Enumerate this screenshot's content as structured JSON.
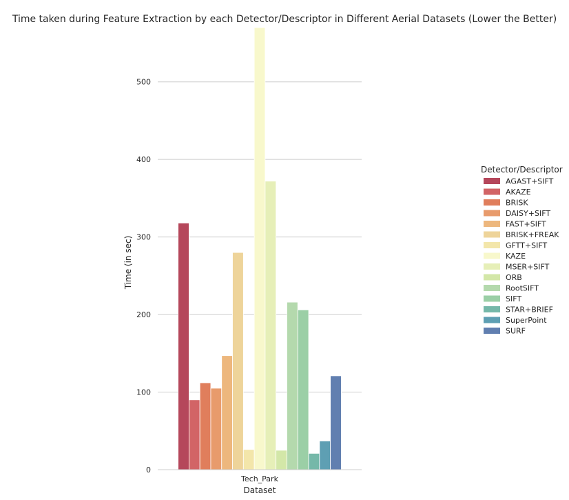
{
  "chart_data": {
    "type": "bar",
    "title": "Time taken during Feature Extraction by each Detector/Descriptor in Different Aerial Datasets (Lower the Better)",
    "xlabel": "Dataset",
    "ylabel": "Time (in sec)",
    "categories": [
      "Tech_Park"
    ],
    "ylim": [
      0,
      570
    ],
    "yticks": [
      0,
      100,
      200,
      300,
      400,
      500
    ],
    "grid": true,
    "legend_title": "Detector/Descriptor",
    "legend_position": "right",
    "series": [
      {
        "name": "AGAST+SIFT",
        "values": [
          318
        ],
        "color": "#b5475b"
      },
      {
        "name": "AKAZE",
        "values": [
          90
        ],
        "color": "#d26466"
      },
      {
        "name": "BRISK",
        "values": [
          112
        ],
        "color": "#e07e5c"
      },
      {
        "name": "DAISY+SIFT",
        "values": [
          105
        ],
        "color": "#e89b6c"
      },
      {
        "name": "FAST+SIFT",
        "values": [
          147
        ],
        "color": "#edb77d"
      },
      {
        "name": "BRISK+FREAK",
        "values": [
          280
        ],
        "color": "#eed49a"
      },
      {
        "name": "GFTT+SIFT",
        "values": [
          26
        ],
        "color": "#f3e6aa"
      },
      {
        "name": "KAZE",
        "values": [
          570
        ],
        "color": "#f8f8cc"
      },
      {
        "name": "MSER+SIFT",
        "values": [
          372
        ],
        "color": "#e6efb8"
      },
      {
        "name": "ORB",
        "values": [
          25
        ],
        "color": "#d3e7a8"
      },
      {
        "name": "RootSIFT",
        "values": [
          216
        ],
        "color": "#b4d9ad"
      },
      {
        "name": "SIFT",
        "values": [
          206
        ],
        "color": "#9bcfa6"
      },
      {
        "name": "STAR+BRIEF",
        "values": [
          21
        ],
        "color": "#75b8a9"
      },
      {
        "name": "SuperPoint",
        "values": [
          37
        ],
        "color": "#5e9fb3"
      },
      {
        "name": "SURF",
        "values": [
          121
        ],
        "color": "#617fb0"
      }
    ]
  }
}
